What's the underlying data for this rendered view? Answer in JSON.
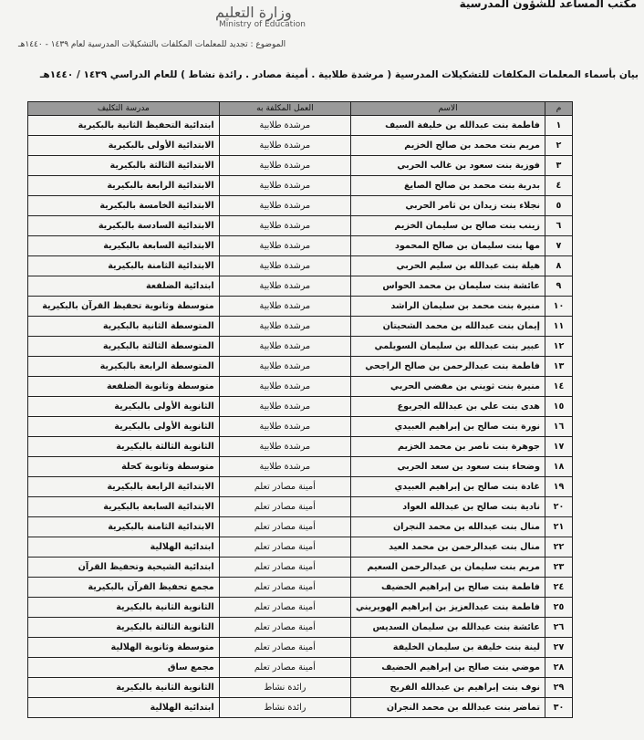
{
  "header": {
    "office": "مكتب المساعد للشؤون المدرسية",
    "ministry_ar": "وزارة التعليم",
    "ministry_en": "Ministry of Education",
    "subject": "الموضوع : تجديد للمعلمات المكلفات بالتشكيلات المدرسية لعام ١٤٣٩ - ١٤٤٠هـ"
  },
  "title": "بيان بأسماء المعلمات المكلفات للتشكيلات المدرسية ( مرشدة طلابية . أمينة مصادر . رائدة نشاط ) للعام الدراسي ١٤٣٩ / ١٤٤٠هـ",
  "table": {
    "columns": [
      "م",
      "الاسم",
      "العمل المكلفة به",
      "مدرسة التكليف"
    ],
    "rows": [
      [
        "١",
        "فاطمة بنت عبدالله بن خليفة السيف",
        "مرشدة طلابية",
        "ابتدائية التحفيظ الثانية بالبكيرية"
      ],
      [
        "٢",
        "مريم بنت محمد بن صالح الخزيم",
        "مرشدة طلابية",
        "الابتدائية الأولى بالبكيرية"
      ],
      [
        "٣",
        "فوزية بنت سعود بن غالب الحربي",
        "مرشدة طلابية",
        "الابتدائية الثالثة بالبكيرية"
      ],
      [
        "٤",
        "بدرية بنت محمد بن صالح الصايغ",
        "مرشدة طلابية",
        "الابتدائية الرابعة بالبكيرية"
      ],
      [
        "٥",
        "نجلاء بنت زيدان بن ثامر الحربي",
        "مرشدة طلابية",
        "الابتدائية الخامسة بالبكيرية"
      ],
      [
        "٦",
        "زينب بنت صالح بن سليمان الخزيم",
        "مرشدة طلابية",
        "الابتدائية السادسة بالبكيرية"
      ],
      [
        "٧",
        "مها بنت سليمان بن صالح المحمود",
        "مرشدة طلابية",
        "الابتدائية السابعة بالبكيرية"
      ],
      [
        "٨",
        "هيلة بنت عبدالله بن سليم الحربي",
        "مرشدة طلابية",
        "الابتدائية الثامنة بالبكيرية"
      ],
      [
        "٩",
        "عائشة بنت سليمان بن محمد الحواس",
        "مرشدة طلابية",
        "ابتدائية الضلفعة"
      ],
      [
        "١٠",
        "منيرة بنت محمد بن سليمان الراشد",
        "مرشدة طلابية",
        "متوسطة وثانوية تحفيظ القرآن بالبكيرية"
      ],
      [
        "١١",
        "إيمان بنت عبدالله بن محمد الشحيتان",
        "مرشدة طلابية",
        "المتوسطة الثانية بالبكيرية"
      ],
      [
        "١٢",
        "عبير بنت عبدالله بن سليمان السويلمي",
        "مرشدة طلابية",
        "المتوسطة الثالثة بالبكيرية"
      ],
      [
        "١٣",
        "فاطمة بنت عبدالرحمن بن صالح الراجحي",
        "مرشدة طلابية",
        "المتوسطة الرابعة بالبكيرية"
      ],
      [
        "١٤",
        "منيرة بنت ثويني بن مفضي الحربي",
        "مرشدة طلابية",
        "متوسطة وثانوية الضلفعة"
      ],
      [
        "١٥",
        "هدى بنت علي بن عبدالله الجربوع",
        "مرشدة طلابية",
        "الثانوية الأولى بالبكيرية"
      ],
      [
        "١٦",
        "نورة بنت صالح بن إبراهيم العبيدي",
        "مرشدة طلابية",
        "الثانوية الأولى بالبكيرية"
      ],
      [
        "١٧",
        "جوهرة بنت ناصر بن محمد الخزيم",
        "مرشدة طلابية",
        "الثانوية الثالثة بالبكيرية"
      ],
      [
        "١٨",
        "وضحاء بنت سعود بن سعد الحربي",
        "مرشدة طلابية",
        "متوسطة وثانوية كحلة"
      ],
      [
        "١٩",
        "غادة بنت صالح بن إبراهيم العبيدي",
        "أمينة مصادر تعلم",
        "الابتدائية الرابعة بالبكيرية"
      ],
      [
        "٢٠",
        "نادية بنت صالح بن عبدالله العواد",
        "أمينة مصادر تعلم",
        "الابتدائية السابعة بالبكيرية"
      ],
      [
        "٢١",
        "منال بنت عبدالله بن محمد النجران",
        "أمينة مصادر تعلم",
        "الابتدائية الثامنة بالبكيرية"
      ],
      [
        "٢٢",
        "منال بنت عبدالرحمن بن محمد العيد",
        "أمينة مصادر تعلم",
        "ابتدائية الهلالية"
      ],
      [
        "٢٣",
        "مريم بنت سليمان بن عبدالرحمن السعيم",
        "أمينة مصادر تعلم",
        "ابتدائية الشيحية وتحفيظ القرآن"
      ],
      [
        "٢٤",
        "فاطمة بنت صالح بن إبراهيم الحضيف",
        "أمينة مصادر تعلم",
        "مجمع تحفيظ القرآن بالبكيرية"
      ],
      [
        "٢٥",
        "فاطمة بنت عبدالعزيز بن إبراهيم الهويريني",
        "أمينة مصادر تعلم",
        "الثانوية الثانية بالبكيرية"
      ],
      [
        "٢٦",
        "عائشة بنت عبدالله بن سليمان السديس",
        "أمينة مصادر تعلم",
        "الثانوية الثالثة بالبكيرية"
      ],
      [
        "٢٧",
        "لينة بنت خليفة بن سليمان الخليفة",
        "أمينة مصادر تعلم",
        "متوسطة وثانوية الهلالية"
      ],
      [
        "٢٨",
        "موضي بنت صالح بن إبراهيم الحضيف",
        "أمينة مصادر تعلم",
        "مجمع ساق"
      ],
      [
        "٢٩",
        "نوف بنت إبراهيم بن عبدالله الفريح",
        "رائدة نشاط",
        "الثانوية الثانية بالبكيرية"
      ],
      [
        "٣٠",
        "تماضر بنت عبدالله بن محمد النجران",
        "رائدة نشاط",
        "ابتدائية الهلالية"
      ]
    ]
  }
}
